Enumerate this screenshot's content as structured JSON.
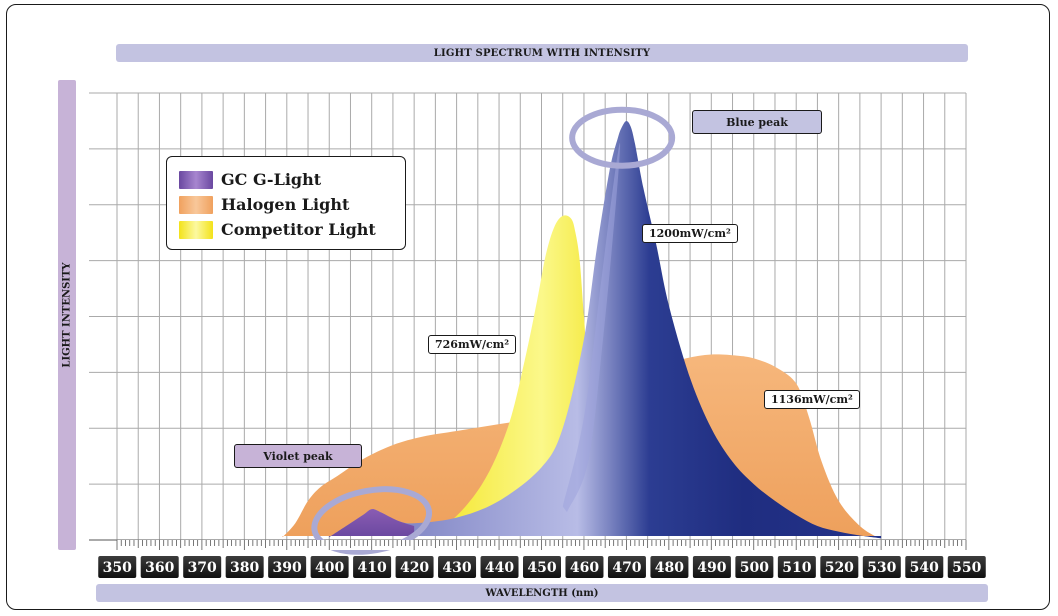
{
  "chart_data": {
    "type": "area",
    "title": "LIGHT SPECTRUM WITH INTENSITY",
    "xlabel": "WAVELENGTH (nm)",
    "ylabel": "LIGHT INTENSITY",
    "xlim": [
      350,
      550
    ],
    "ylim": [
      0,
      8
    ],
    "grid": true,
    "legend_position": "top-left",
    "x_ticks": [
      "350",
      "360",
      "370",
      "380",
      "390",
      "400",
      "410",
      "420",
      "430",
      "440",
      "450",
      "460",
      "470",
      "480",
      "490",
      "500",
      "510",
      "520",
      "530",
      "540",
      "550"
    ],
    "series": [
      {
        "name": "Halogen Light",
        "color": "#f3aa6a",
        "x": [
          389,
          392,
          395,
          398,
          402,
          408,
          415,
          422,
          430,
          438,
          446,
          454,
          462,
          470,
          478,
          484,
          490,
          496,
          500,
          505,
          510,
          513,
          516,
          520,
          525,
          529
        ],
        "y": [
          0.05,
          0.3,
          0.7,
          0.95,
          1.15,
          1.45,
          1.7,
          1.85,
          1.95,
          2.05,
          2.15,
          2.3,
          2.55,
          2.9,
          3.1,
          3.25,
          3.32,
          3.3,
          3.25,
          3.1,
          2.8,
          2.2,
          1.4,
          0.7,
          0.25,
          0.05
        ],
        "annotation": "1136mW/cm²"
      },
      {
        "name": "Competitor Light",
        "color": "#f5ec2c",
        "x": [
          420,
          428,
          436,
          442,
          446,
          449,
          451,
          453,
          455,
          457,
          458,
          459,
          460,
          461,
          463,
          466,
          470
        ],
        "y": [
          0.05,
          0.3,
          1.0,
          2.0,
          3.2,
          4.3,
          5.1,
          5.6,
          5.8,
          5.75,
          5.5,
          5.0,
          4.0,
          3.0,
          1.7,
          0.7,
          0.2
        ],
        "annotation": "726mW/cm²"
      },
      {
        "name": "GC G-Light",
        "color": "#2b3c8c",
        "x": [
          400,
          404,
          408,
          410,
          412,
          416,
          420,
          430,
          440,
          450,
          455,
          460,
          463,
          466,
          468,
          469,
          470,
          471,
          472,
          474,
          477,
          480,
          485,
          490,
          495,
          500,
          505,
          510,
          515,
          520,
          525,
          530
        ],
        "y": [
          0.05,
          0.25,
          0.45,
          0.55,
          0.5,
          0.35,
          0.3,
          0.4,
          0.7,
          1.3,
          2.0,
          3.6,
          5.2,
          6.6,
          7.2,
          7.4,
          7.5,
          7.4,
          7.1,
          6.3,
          5.3,
          4.2,
          2.9,
          2.0,
          1.4,
          1.0,
          0.7,
          0.45,
          0.25,
          0.15,
          0.08,
          0.03
        ],
        "annotation": "1200mW/cm²"
      }
    ],
    "annotations": [
      "Blue peak",
      "Violet peak"
    ]
  },
  "colors": {
    "grid": "#aaaaaa",
    "tick_box": "#1e1e1e",
    "header_bar": "#c3c3e1",
    "axis_bar": "#c7b3d7",
    "highlight_ring": "#a9a9d4"
  },
  "legend": [
    {
      "label": "GC G-Light",
      "color": "#7a52a6"
    },
    {
      "label": "Halogen Light",
      "color": "#f3aa6a"
    },
    {
      "label": "Competitor Light",
      "color": "#f5ec2c"
    }
  ],
  "callouts": {
    "blue_peak": "Blue peak",
    "violet_peak": "Violet peak",
    "gc_intensity": "1200mW/cm²",
    "competitor_intensity": "726mW/cm²",
    "halogen_intensity": "1136mW/cm²"
  }
}
